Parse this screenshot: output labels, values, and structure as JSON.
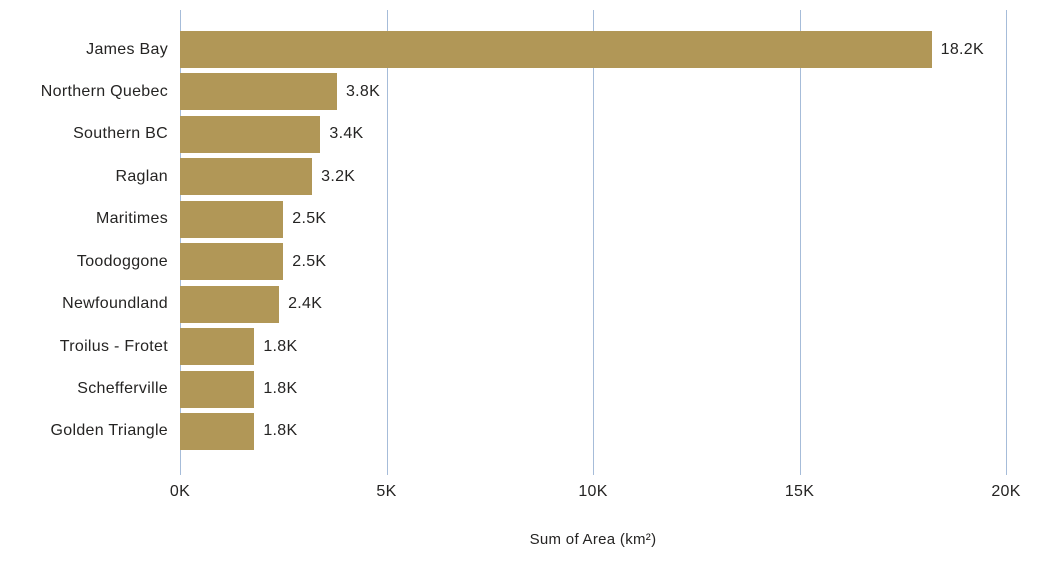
{
  "chart_data": {
    "type": "bar",
    "orientation": "horizontal",
    "title": "",
    "categories": [
      "James Bay",
      "Northern Quebec",
      "Southern BC",
      "Raglan",
      "Maritimes",
      "Toodoggone",
      "Newfoundland",
      "Troilus - Frotet",
      "Schefferville",
      "Golden Triangle"
    ],
    "values": [
      18200,
      3800,
      3400,
      3200,
      2500,
      2500,
      2400,
      1800,
      1800,
      1800
    ],
    "value_labels": [
      "18.2K",
      "3.8K",
      "3.4K",
      "3.2K",
      "2.5K",
      "2.5K",
      "2.4K",
      "1.8K",
      "1.8K",
      "1.8K"
    ],
    "xlabel": "Sum of Area (km²)",
    "x_ticks": [
      "0K",
      "5K",
      "10K",
      "15K",
      "20K"
    ],
    "x_tick_values": [
      0,
      5000,
      10000,
      15000,
      20000
    ],
    "xlim": [
      0,
      20000
    ],
    "grid": "vertical",
    "legend": "none",
    "colors": {
      "bar": "#b19757",
      "gridline": "#a6bcd9",
      "text": "#252423",
      "background": "#ffffff"
    }
  }
}
